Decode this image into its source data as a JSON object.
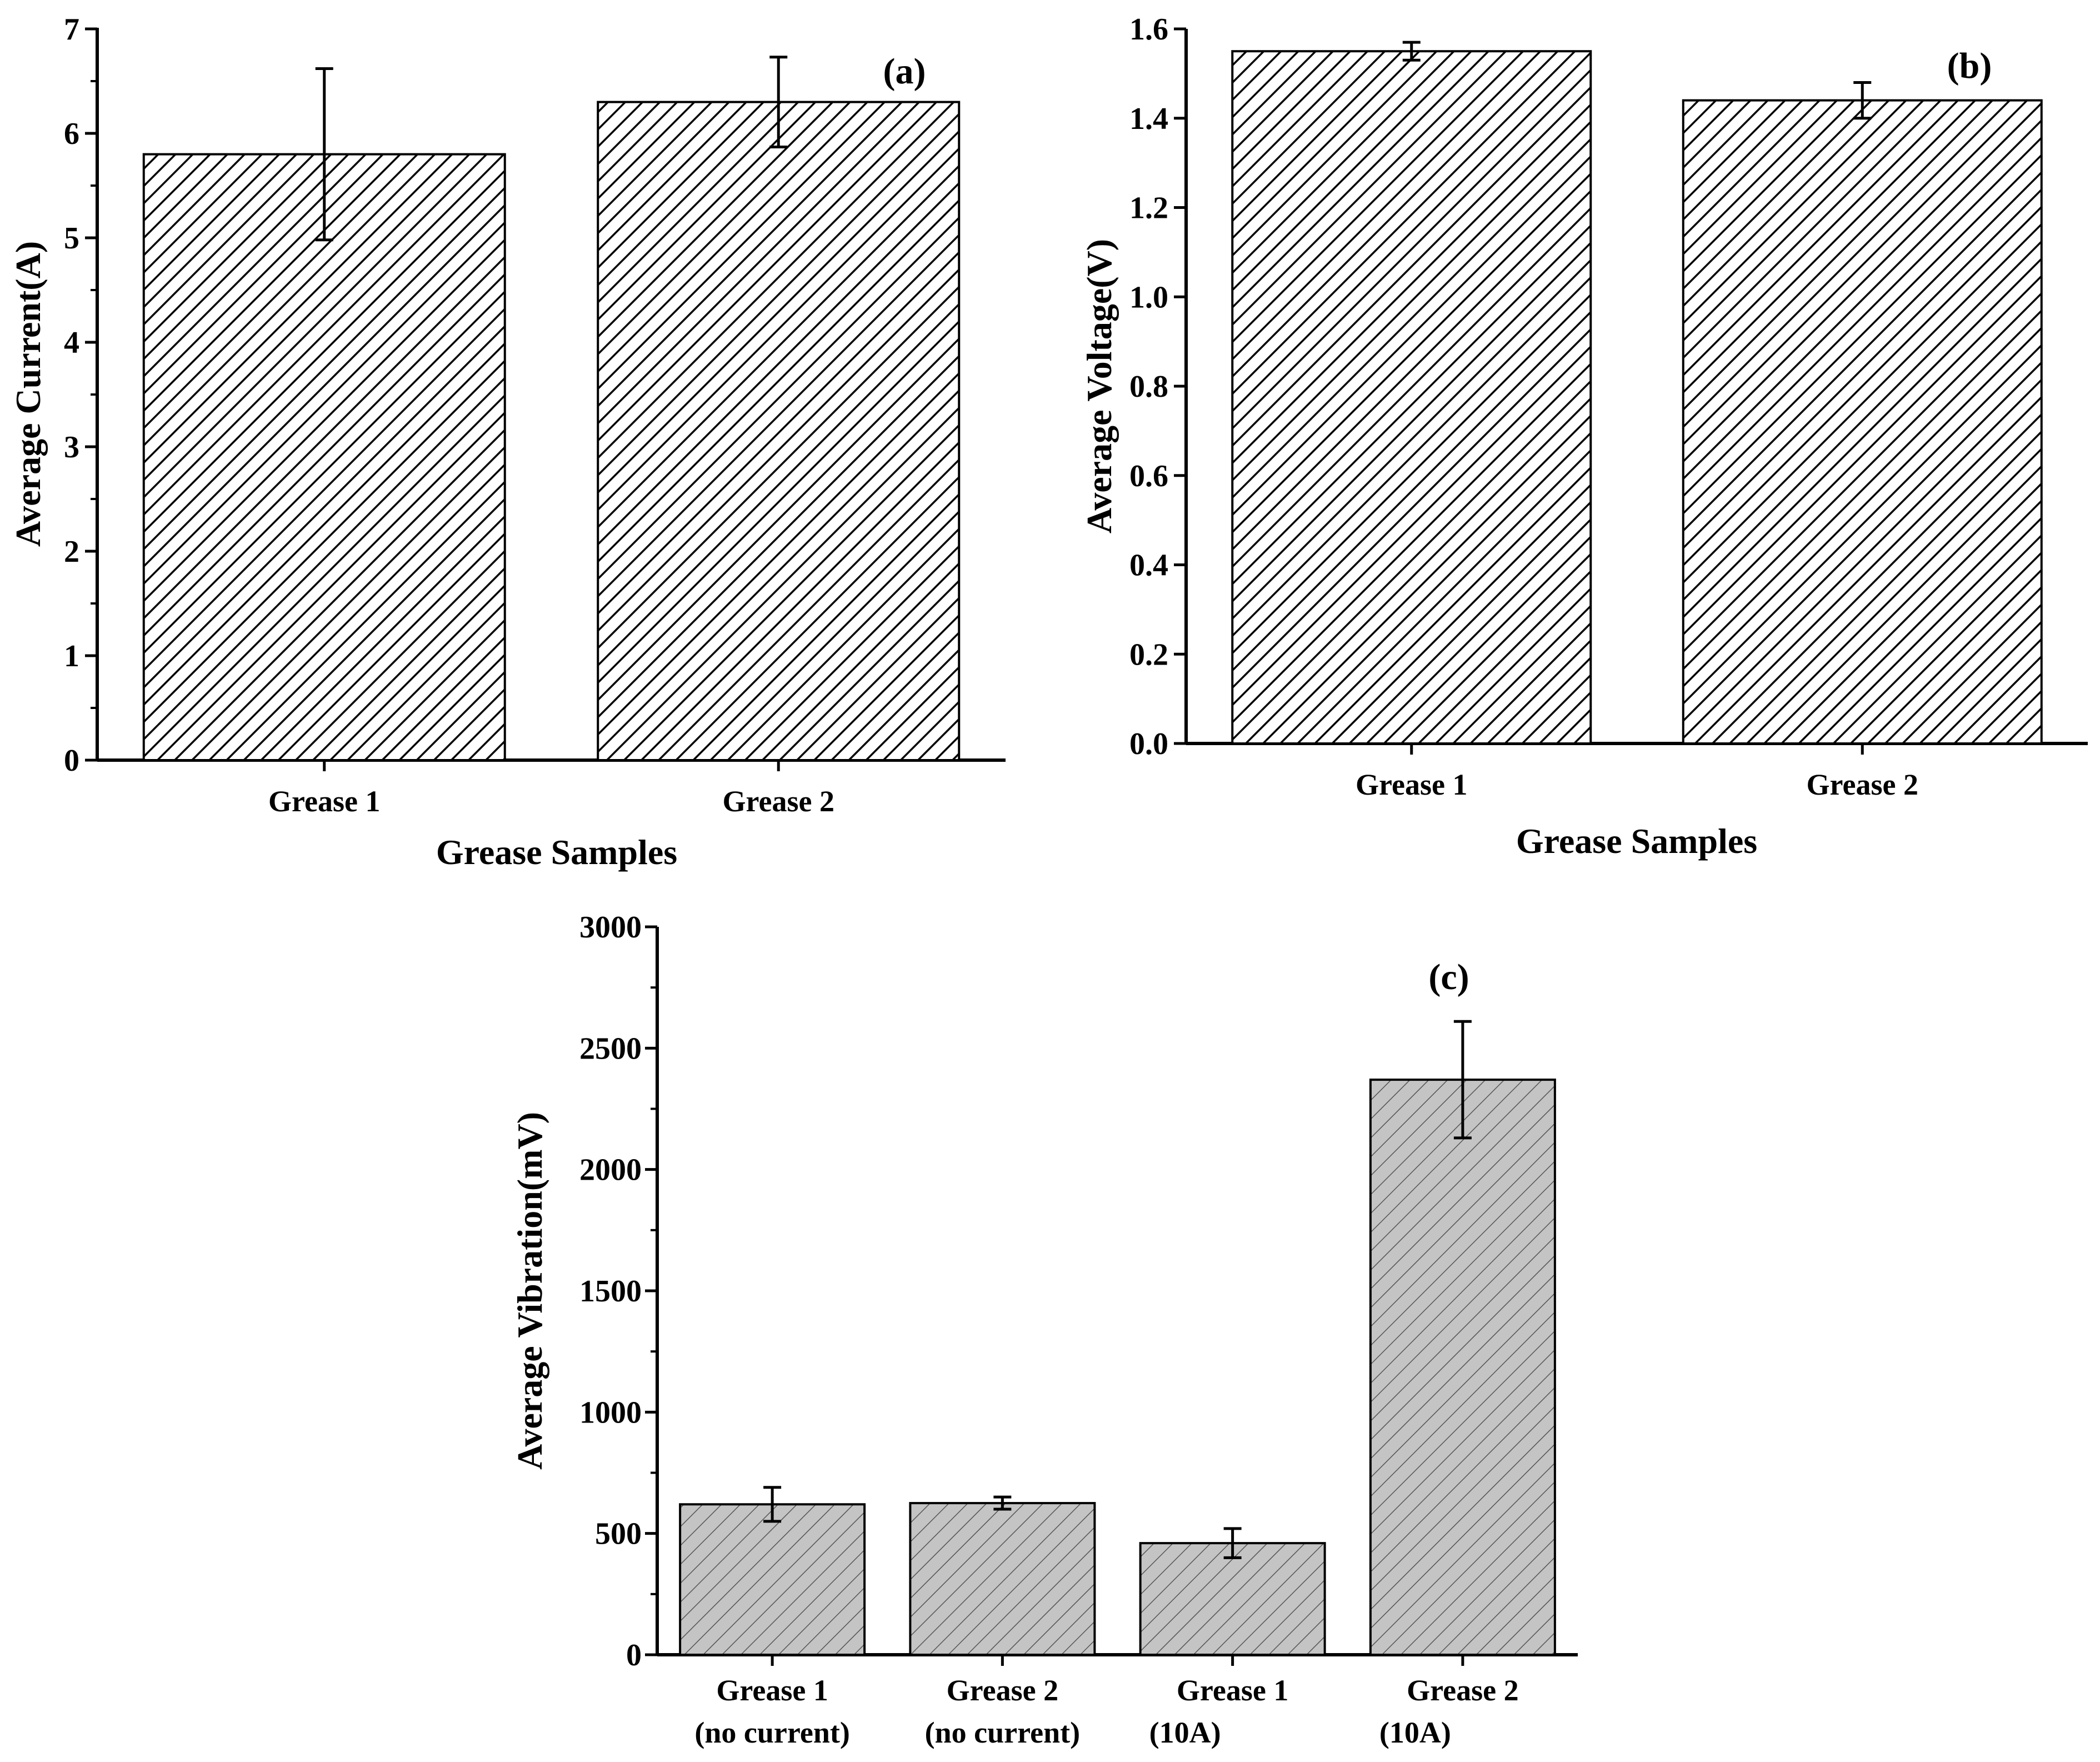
{
  "colors": {
    "bar_fill_a": "#ffffff",
    "bar_fill_b": "#ffffff",
    "bar_fill_c": "#c0c0c0",
    "hatch": "#000000"
  },
  "chart_data": [
    {
      "panel": "(a)",
      "type": "bar",
      "categories": [
        "Grease 1",
        "Grease 2"
      ],
      "values": [
        5.8,
        6.3
      ],
      "errors": [
        0.82,
        0.43
      ],
      "xlabel": "Grease Samples",
      "ylabel": "Average Current(A)",
      "ylim": [
        0,
        7
      ],
      "yticks": [
        "0",
        "1",
        "2",
        "3",
        "4",
        "5",
        "6",
        "7"
      ]
    },
    {
      "panel": "(b)",
      "type": "bar",
      "categories": [
        "Grease 1",
        "Grease 2"
      ],
      "values": [
        1.55,
        1.44
      ],
      "errors": [
        0.02,
        0.04
      ],
      "xlabel": "Grease Samples",
      "ylabel": "Average Voltage(V)",
      "ylim": [
        0,
        1.6
      ],
      "yticks": [
        "0.0",
        "0.2",
        "0.4",
        "0.6",
        "0.8",
        "1.0",
        "1.2",
        "1.4",
        "1.6"
      ]
    },
    {
      "panel": "(c)",
      "type": "bar",
      "categories": [
        [
          "Grease 1",
          "(no current)"
        ],
        [
          "Grease 2",
          "(no current)"
        ],
        [
          "Grease 1",
          "(10A)"
        ],
        [
          "Grease 2",
          "(10A)"
        ]
      ],
      "values": [
        620,
        625,
        460,
        2370
      ],
      "errors": [
        70,
        25,
        60,
        240
      ],
      "xlabel": "",
      "ylabel": "Average Vibration(mV)",
      "ylim": [
        0,
        3000
      ],
      "yticks": [
        "0",
        "500",
        "1000",
        "1500",
        "2000",
        "2500",
        "3000"
      ]
    }
  ]
}
